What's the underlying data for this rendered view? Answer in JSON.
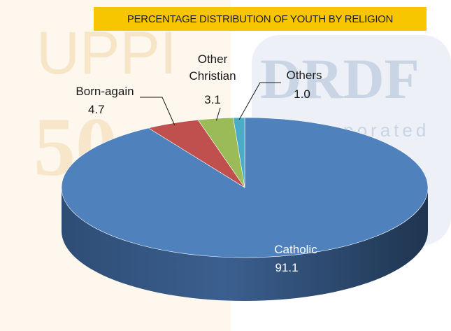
{
  "colors": {
    "title_bg": "#f7c600",
    "watermark_orange": "#f2d7a8",
    "watermark_blue": "#b7c6da"
  },
  "watermark": {
    "left_text": "UPPI",
    "left_number": "50",
    "right_text": "DRDF",
    "right_sub": "corporated"
  },
  "chart_data": {
    "type": "pie",
    "title": "PERCENTAGE DISTRIBUTION OF YOUTH BY RELIGION",
    "three_d": true,
    "slices": [
      {
        "label": "Catholic",
        "value": 91.1,
        "display": "91.1",
        "color": "#4f81bd"
      },
      {
        "label": "Born-again",
        "value": 4.7,
        "display": "4.7",
        "color": "#c0504d"
      },
      {
        "label": "Other Christian",
        "value": 3.1,
        "display": "3.1",
        "color": "#9bbb59"
      },
      {
        "label": "Others",
        "value": 1.0,
        "display": "1.0",
        "color": "#4bacc6"
      }
    ]
  }
}
